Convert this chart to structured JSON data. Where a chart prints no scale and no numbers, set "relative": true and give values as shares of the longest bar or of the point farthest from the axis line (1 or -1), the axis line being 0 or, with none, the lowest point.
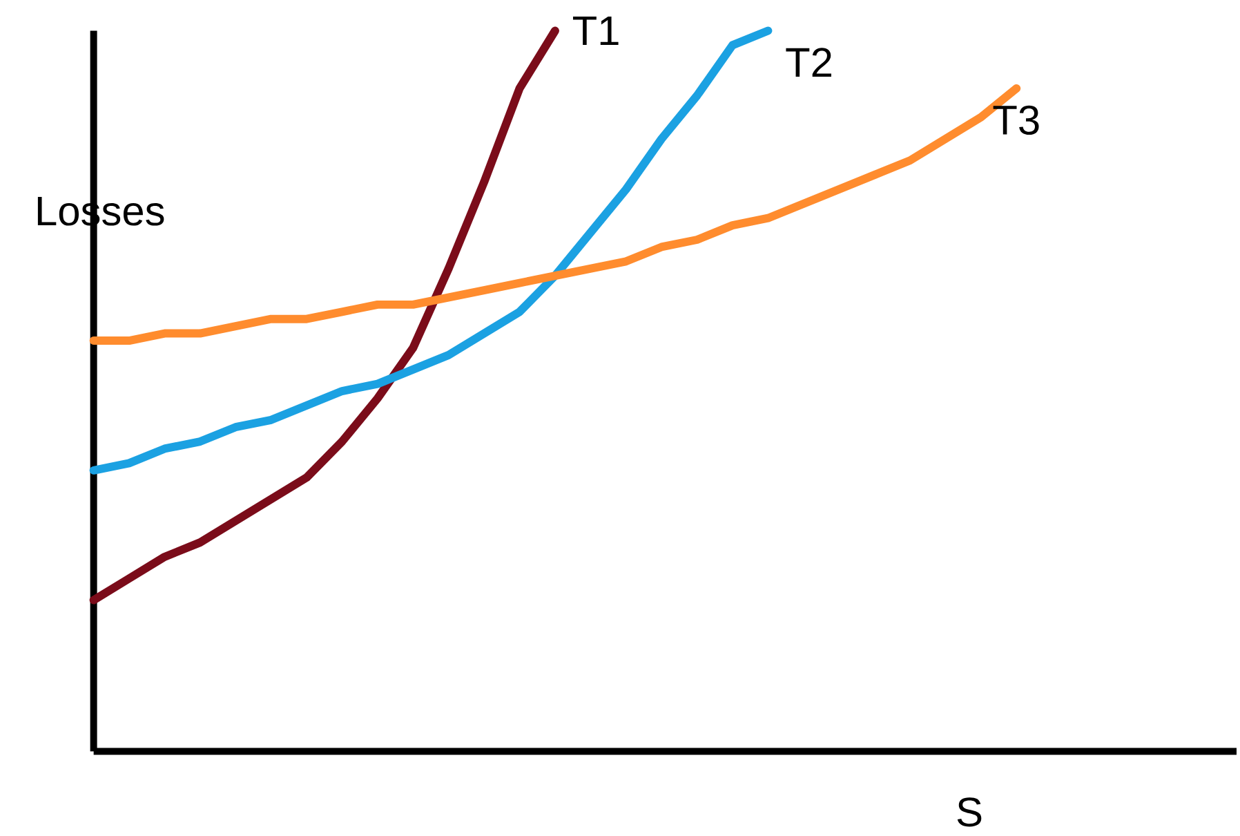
{
  "chart_data": {
    "type": "line",
    "relative": true,
    "xlabel": "S",
    "ylabel": "Losses",
    "categories": [
      null,
      null,
      null,
      null,
      null,
      null,
      null,
      null,
      null,
      null,
      null,
      null,
      null,
      null,
      null,
      null,
      null,
      null,
      null,
      null,
      null,
      null,
      null,
      null,
      null,
      null,
      null,
      null,
      null,
      null,
      null,
      null,
      null
    ],
    "series": [
      {
        "name": "T1",
        "color": "#7b0c1a",
        "values": [
          0.21,
          0.24,
          0.27,
          0.29,
          0.32,
          0.35,
          0.38,
          0.43,
          0.49,
          0.56,
          0.67,
          0.79,
          0.92,
          1.0,
          null,
          null,
          null,
          null,
          null,
          null,
          null,
          null,
          null,
          null,
          null,
          null,
          null,
          null,
          null,
          null,
          null,
          null,
          null
        ]
      },
      {
        "name": "T2",
        "color": "#1ba1e2",
        "values": [
          0.39,
          0.4,
          0.42,
          0.43,
          0.45,
          0.46,
          0.48,
          0.5,
          0.51,
          0.53,
          0.55,
          0.58,
          0.61,
          0.66,
          0.72,
          0.78,
          0.85,
          0.91,
          0.98,
          1.0,
          null,
          null,
          null,
          null,
          null,
          null,
          null,
          null,
          null,
          null,
          null,
          null,
          null
        ]
      },
      {
        "name": "T3",
        "color": "#ff8c2e",
        "values": [
          0.57,
          0.57,
          0.58,
          0.58,
          0.59,
          0.6,
          0.6,
          0.61,
          0.62,
          0.62,
          0.63,
          0.64,
          0.65,
          0.66,
          0.67,
          0.68,
          0.7,
          0.71,
          0.73,
          0.74,
          0.76,
          0.78,
          0.8,
          0.82,
          0.85,
          0.88,
          0.92,
          null,
          null,
          null,
          null,
          null,
          null
        ]
      }
    ]
  }
}
